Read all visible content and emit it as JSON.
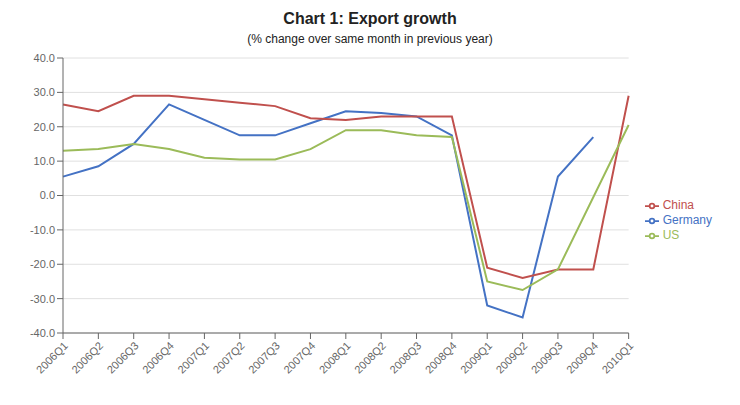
{
  "chart_data": {
    "type": "line",
    "title": "Chart 1: Export growth",
    "subtitle": "(% change over same month in previous year)",
    "categories": [
      "2006Q1",
      "2006Q2",
      "2006Q3",
      "2006Q4",
      "2007Q1",
      "2007Q2",
      "2007Q3",
      "2007Q4",
      "2008Q1",
      "2008Q2",
      "2008Q3",
      "2008Q4",
      "2009Q1",
      "2009Q2",
      "2009Q3",
      "2009Q4",
      "2010Q1"
    ],
    "series": [
      {
        "name": "Germany",
        "color": "#4472C4",
        "values": [
          5.5,
          8.5,
          15.0,
          26.5,
          22.0,
          17.5,
          17.5,
          21.0,
          24.5,
          24.0,
          23.0,
          17.5,
          -32.0,
          -35.5,
          5.5,
          17.0,
          null
        ]
      },
      {
        "name": "China",
        "color": "#C0504D",
        "values": [
          26.5,
          24.5,
          29.0,
          29.0,
          28.0,
          27.0,
          26.0,
          22.5,
          22.0,
          23.0,
          23.0,
          23.0,
          -21.0,
          -24.0,
          -21.5,
          -21.5,
          29.0
        ]
      },
      {
        "name": "US",
        "color": "#9BBB59",
        "values": [
          13.0,
          13.5,
          15.0,
          13.5,
          11.0,
          10.5,
          10.5,
          13.5,
          19.0,
          19.0,
          17.5,
          17.0,
          -25.0,
          -27.5,
          -21.5,
          null,
          20.5
        ]
      }
    ],
    "ylim": [
      -40,
      40
    ],
    "yticks": [
      {
        "value": -40,
        "label": "-40.0"
      },
      {
        "value": -30,
        "label": "-30.0"
      },
      {
        "value": -20,
        "label": "-20.0"
      },
      {
        "value": -10,
        "label": "-10.0"
      },
      {
        "value": 0,
        "label": "0.0"
      },
      {
        "value": 10,
        "label": "10.0"
      },
      {
        "value": 20,
        "label": "20.0"
      },
      {
        "value": 30,
        "label": "30.0"
      },
      {
        "value": 40,
        "label": "40.0"
      }
    ],
    "grid": true,
    "legend": "right"
  }
}
